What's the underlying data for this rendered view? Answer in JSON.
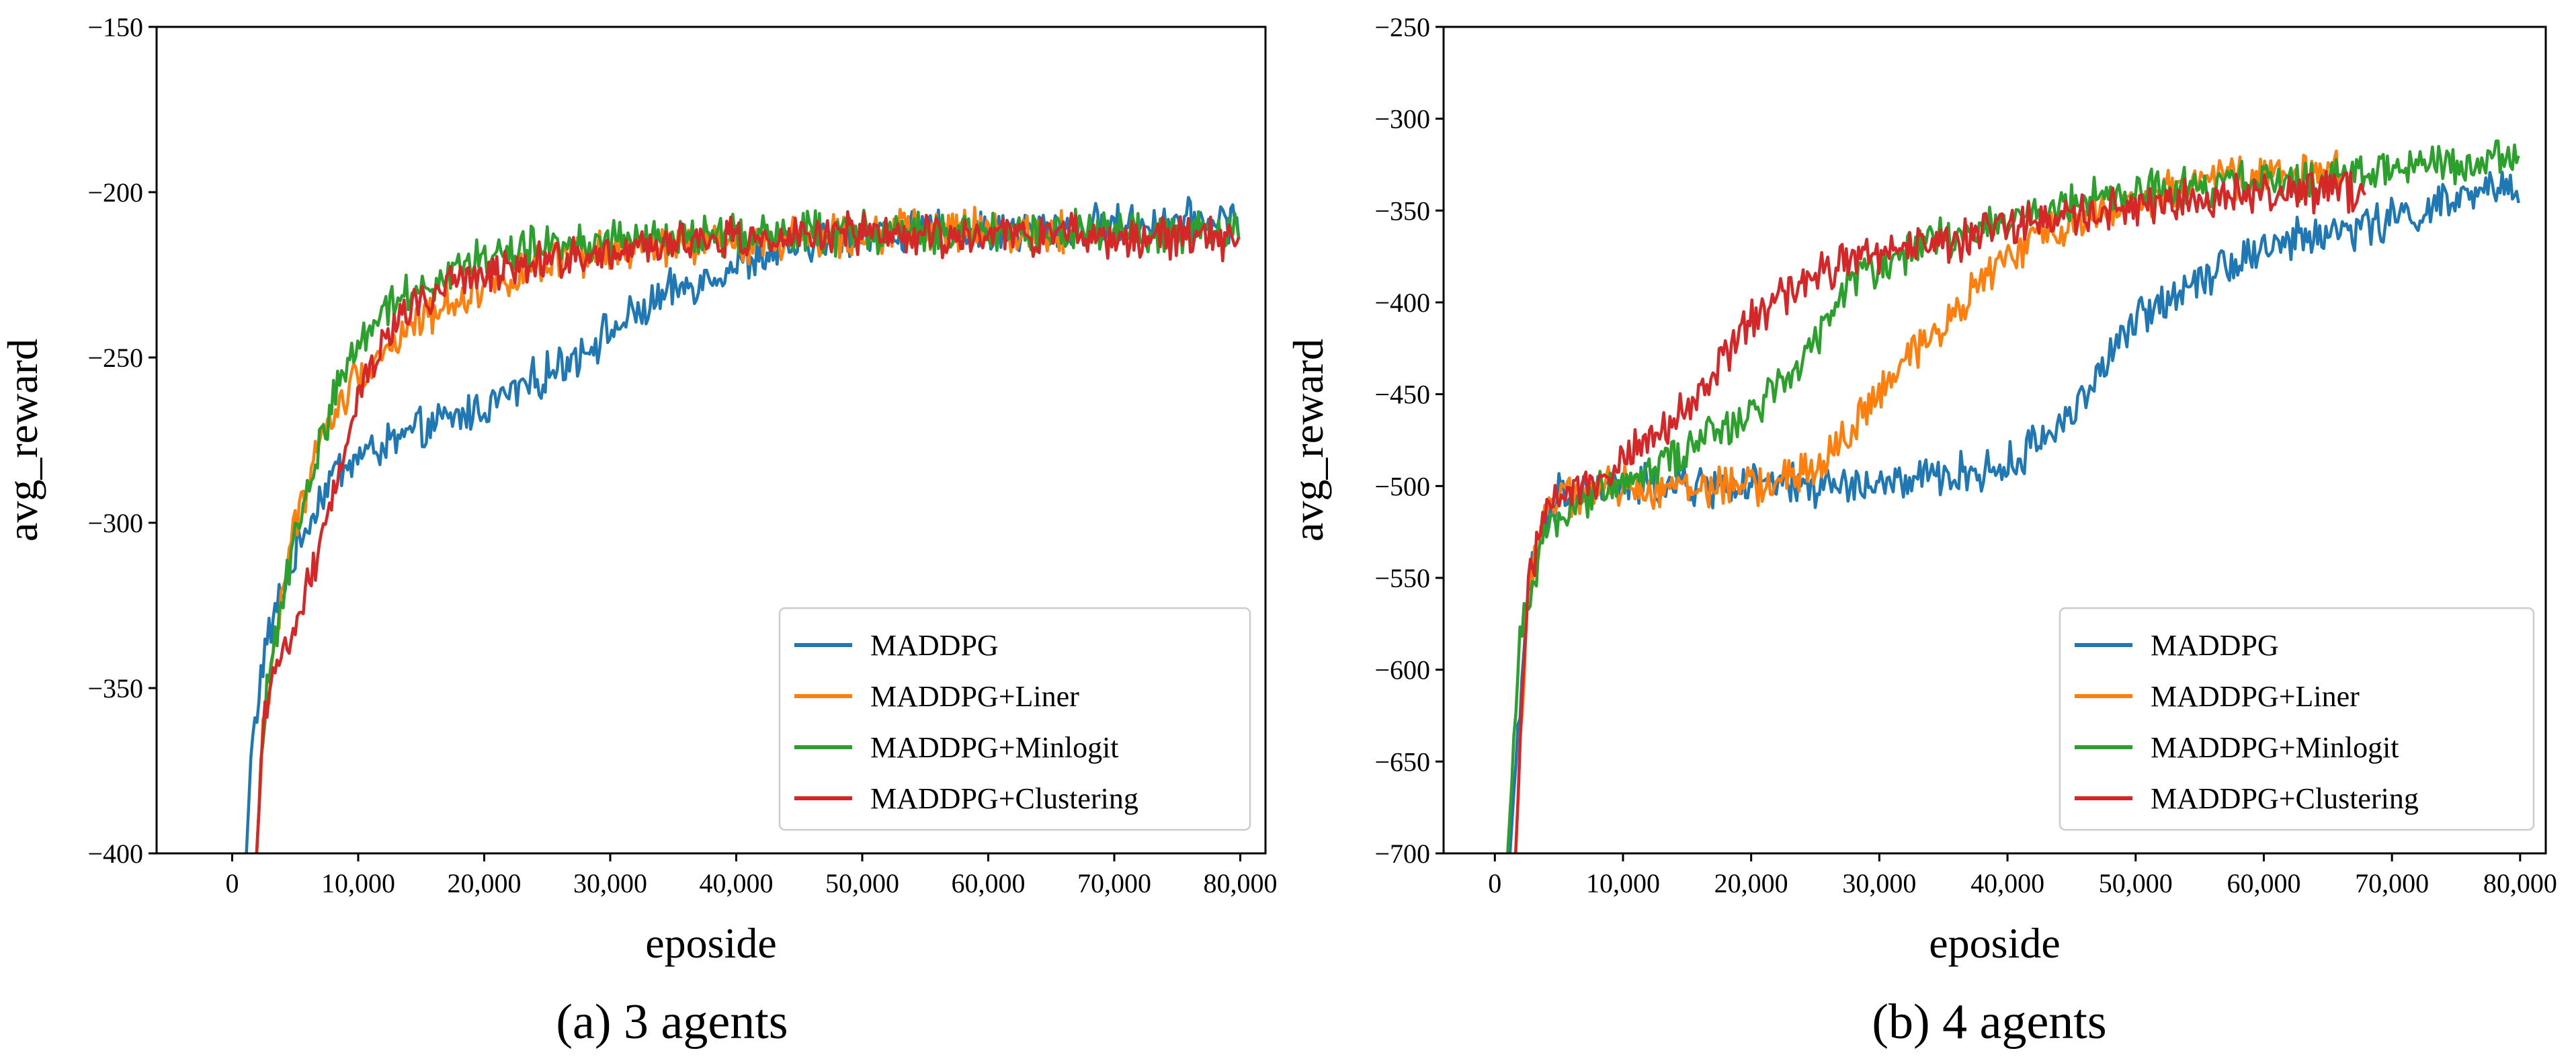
{
  "chart_data": [
    {
      "id": "a",
      "type": "line",
      "caption": "(a) 3 agents",
      "xlabel": "eposide",
      "ylabel": "avg_reward",
      "xlim": [
        -6000,
        82000
      ],
      "ylim": [
        -400,
        -150
      ],
      "xticks": [
        0,
        10000,
        20000,
        30000,
        40000,
        50000,
        60000,
        70000,
        80000
      ],
      "xtick_labels": [
        "0",
        "10,000",
        "20,000",
        "30,000",
        "40,000",
        "50,000",
        "60,000",
        "70,000",
        "80,000"
      ],
      "yticks": [
        -400,
        -350,
        -300,
        -250,
        -200,
        -150
      ],
      "ytick_labels": [
        "−400",
        "−350",
        "−300",
        "−250",
        "−200",
        "−150"
      ],
      "legend_position": "lower-right",
      "series": [
        {
          "name": "MADDPG",
          "color": "#1f77b4",
          "noise": 5,
          "end": 80000,
          "points": [
            [
              1000,
              -410
            ],
            [
              1500,
              -370
            ],
            [
              2500,
              -340
            ],
            [
              4000,
              -320
            ],
            [
              6000,
              -300
            ],
            [
              8000,
              -285
            ],
            [
              10000,
              -280
            ],
            [
              15000,
              -272
            ],
            [
              20000,
              -265
            ],
            [
              25000,
              -255
            ],
            [
              30000,
              -242
            ],
            [
              35000,
              -230
            ],
            [
              40000,
              -222
            ],
            [
              45000,
              -216
            ],
            [
              50000,
              -212
            ],
            [
              60000,
              -212
            ],
            [
              70000,
              -210
            ],
            [
              80000,
              -208
            ]
          ]
        },
        {
          "name": "MADDPG+Liner",
          "color": "#ff7f0e",
          "noise": 5,
          "end": 66000,
          "points": [
            [
              1800,
              -410
            ],
            [
              2500,
              -360
            ],
            [
              4000,
              -320
            ],
            [
              5000,
              -300
            ],
            [
              7000,
              -275
            ],
            [
              10000,
              -255
            ],
            [
              15000,
              -238
            ],
            [
              20000,
              -228
            ],
            [
              25000,
              -222
            ],
            [
              30000,
              -218
            ],
            [
              40000,
              -215
            ],
            [
              50000,
              -212
            ],
            [
              60000,
              -212
            ],
            [
              66000,
              -212
            ]
          ]
        },
        {
          "name": "MADDPG+Minlogit",
          "color": "#2ca02c",
          "noise": 5,
          "end": 80000,
          "points": [
            [
              1800,
              -410
            ],
            [
              2500,
              -360
            ],
            [
              4000,
              -320
            ],
            [
              6000,
              -290
            ],
            [
              8000,
              -262
            ],
            [
              10000,
              -245
            ],
            [
              12000,
              -235
            ],
            [
              15000,
              -228
            ],
            [
              20000,
              -220
            ],
            [
              25000,
              -216
            ],
            [
              30000,
              -215
            ],
            [
              40000,
              -213
            ],
            [
              50000,
              -212
            ],
            [
              60000,
              -213
            ],
            [
              70000,
              -212
            ],
            [
              80000,
              -212
            ]
          ]
        },
        {
          "name": "MADDPG+Clustering",
          "color": "#d62728",
          "noise": 5,
          "end": 80000,
          "points": [
            [
              1800,
              -410
            ],
            [
              2500,
              -360
            ],
            [
              4000,
              -340
            ],
            [
              6000,
              -320
            ],
            [
              8000,
              -290
            ],
            [
              10000,
              -260
            ],
            [
              12000,
              -245
            ],
            [
              15000,
              -232
            ],
            [
              20000,
              -225
            ],
            [
              25000,
              -220
            ],
            [
              30000,
              -218
            ],
            [
              40000,
              -214
            ],
            [
              50000,
              -213
            ],
            [
              60000,
              -213
            ],
            [
              70000,
              -213
            ],
            [
              80000,
              -214
            ]
          ]
        }
      ]
    },
    {
      "id": "b",
      "type": "line",
      "caption": "(b) 4 agents",
      "xlabel": "eposide",
      "ylabel": "avg_reward",
      "xlim": [
        -4000,
        82000
      ],
      "ylim": [
        -700,
        -250
      ],
      "xticks": [
        0,
        10000,
        20000,
        30000,
        40000,
        50000,
        60000,
        70000,
        80000
      ],
      "xtick_labels": [
        "0",
        "10,000",
        "20,000",
        "30,000",
        "40,000",
        "50,000",
        "60,000",
        "70,000",
        "80,000"
      ],
      "yticks": [
        -700,
        -650,
        -600,
        -550,
        -500,
        -450,
        -400,
        -350,
        -300,
        -250
      ],
      "ytick_labels": [
        "−700",
        "−650",
        "−600",
        "−550",
        "−500",
        "−450",
        "−400",
        "−350",
        "−300",
        "−250"
      ],
      "legend_position": "lower-right",
      "series": [
        {
          "name": "MADDPG",
          "color": "#1f77b4",
          "noise": 9,
          "end": 80000,
          "points": [
            [
              1000,
              -720
            ],
            [
              2000,
              -610
            ],
            [
              3000,
              -540
            ],
            [
              5000,
              -505
            ],
            [
              10000,
              -500
            ],
            [
              20000,
              -500
            ],
            [
              30000,
              -500
            ],
            [
              40000,
              -490
            ],
            [
              45000,
              -460
            ],
            [
              50000,
              -410
            ],
            [
              55000,
              -385
            ],
            [
              60000,
              -370
            ],
            [
              70000,
              -355
            ],
            [
              80000,
              -335
            ]
          ]
        },
        {
          "name": "MADDPG+Liner",
          "color": "#ff7f0e",
          "noise": 9,
          "end": 66000,
          "points": [
            [
              1500,
              -720
            ],
            [
              2500,
              -560
            ],
            [
              4000,
              -510
            ],
            [
              10000,
              -500
            ],
            [
              20000,
              -500
            ],
            [
              25000,
              -492
            ],
            [
              30000,
              -450
            ],
            [
              35000,
              -410
            ],
            [
              40000,
              -375
            ],
            [
              45000,
              -355
            ],
            [
              50000,
              -345
            ],
            [
              55000,
              -335
            ],
            [
              60000,
              -330
            ],
            [
              66000,
              -330
            ]
          ]
        },
        {
          "name": "MADDPG+Minlogit",
          "color": "#2ca02c",
          "noise": 9,
          "end": 80000,
          "points": [
            [
              1000,
              -700
            ],
            [
              2000,
              -580
            ],
            [
              4000,
              -520
            ],
            [
              10000,
              -495
            ],
            [
              15000,
              -480
            ],
            [
              20000,
              -460
            ],
            [
              25000,
              -420
            ],
            [
              28000,
              -385
            ],
            [
              30000,
              -378
            ],
            [
              40000,
              -355
            ],
            [
              50000,
              -340
            ],
            [
              60000,
              -335
            ],
            [
              70000,
              -328
            ],
            [
              80000,
              -320
            ]
          ]
        },
        {
          "name": "MADDPG+Clustering",
          "color": "#d62728",
          "noise": 9,
          "end": 68000,
          "points": [
            [
              1500,
              -720
            ],
            [
              2500,
              -560
            ],
            [
              4000,
              -510
            ],
            [
              10000,
              -485
            ],
            [
              15000,
              -460
            ],
            [
              20000,
              -410
            ],
            [
              25000,
              -385
            ],
            [
              30000,
              -372
            ],
            [
              40000,
              -360
            ],
            [
              50000,
              -348
            ],
            [
              60000,
              -340
            ],
            [
              68000,
              -340
            ]
          ]
        }
      ]
    }
  ]
}
